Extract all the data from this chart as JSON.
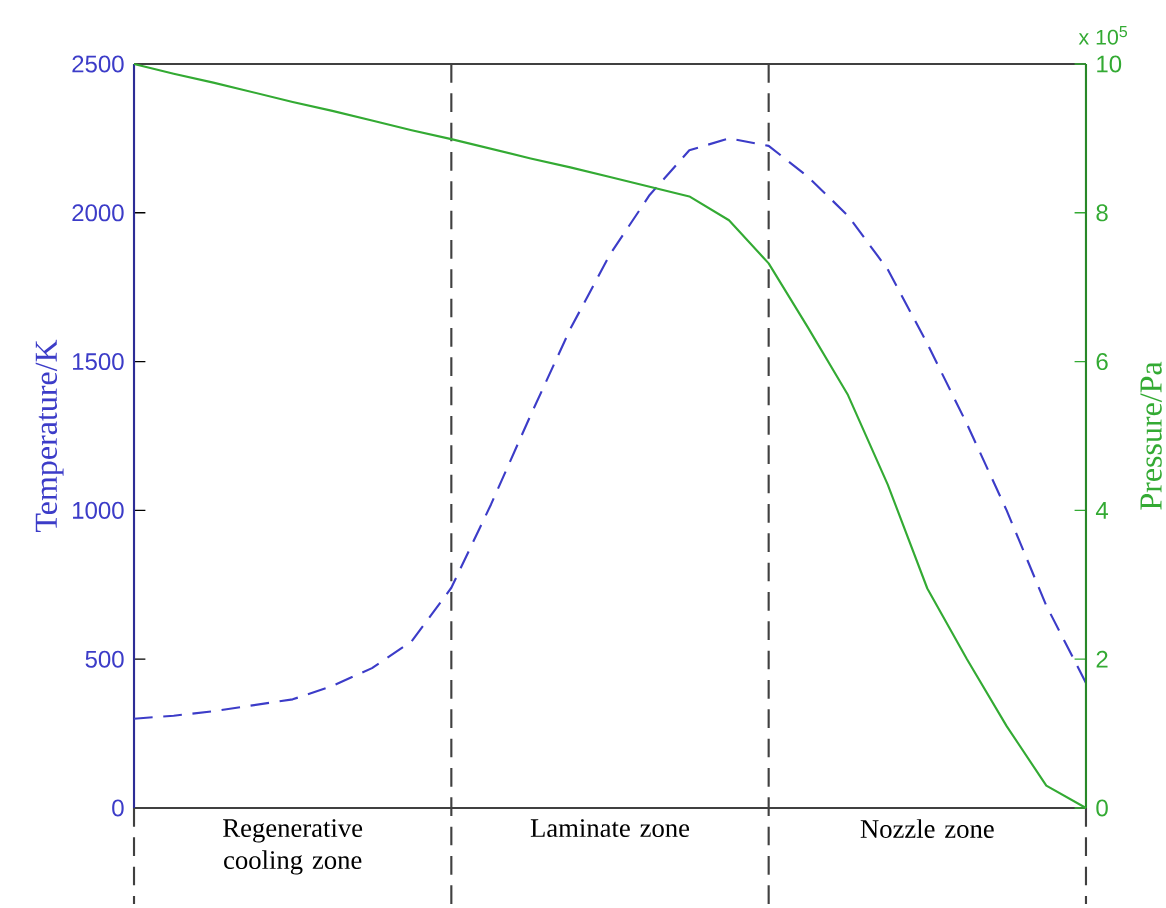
{
  "chart_data": {
    "type": "line",
    "ylabel": "Temperature/K",
    "y2label": "Pressure/Pa",
    "categories": [
      null,
      null,
      null,
      null,
      null,
      null,
      null,
      null,
      null,
      null,
      null,
      null,
      null,
      null,
      null,
      null,
      null,
      null,
      null,
      null,
      null,
      null,
      null,
      null,
      null
    ],
    "ylim": [
      0,
      2500
    ],
    "yticks": [
      0,
      500,
      1000,
      1500,
      2000,
      2500
    ],
    "y2lim": [
      0,
      10
    ],
    "y2ticks": [
      0,
      2,
      4,
      6,
      8,
      10
    ],
    "series": [
      {
        "axis": "y",
        "color": "#3c3cc8",
        "line_style": "dashed",
        "values": [
          300,
          310,
          325,
          345,
          365,
          410,
          470,
          560,
          740,
          1020,
          1320,
          1610,
          1860,
          2060,
          2210,
          2250,
          2225,
          2120,
          1990,
          1810,
          1560,
          1290,
          1000,
          680,
          420
        ]
      },
      {
        "axis": "y2",
        "color": "#33aa33",
        "line_style": "solid",
        "values": [
          10,
          9.87,
          9.75,
          9.62,
          9.49,
          9.37,
          9.24,
          9.11,
          8.99,
          8.86,
          8.73,
          8.61,
          8.48,
          8.35,
          8.22,
          7.9,
          7.32,
          6.45,
          5.55,
          4.35,
          2.95,
          2.0,
          1.1,
          0.3,
          0
        ]
      }
    ],
    "annotations": [
      "x 10$^{5}$",
      "Regenerative cooling zone",
      "Laminate zone",
      "Nozzle zone"
    ],
    "grid": false,
    "marker": "none"
  }
}
